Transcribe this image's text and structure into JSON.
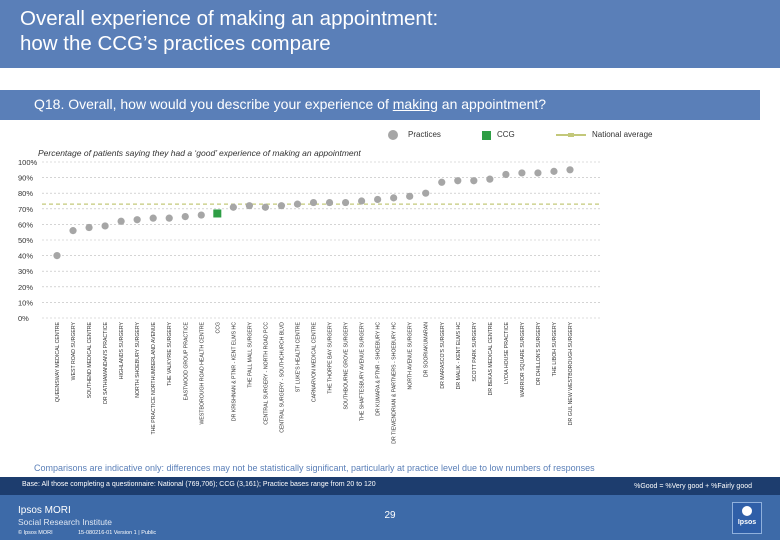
{
  "title": {
    "line1": "Overall experience of making an appointment:",
    "line2": "how the CCG’s practices compare"
  },
  "question": {
    "prefix": "Q18. Overall, how would you describe your experience of ",
    "underlined": "making",
    "suffix": " an appointment?"
  },
  "legend": {
    "practices_label": "Practices",
    "ccg_label": "CCG",
    "national_label": "National average"
  },
  "colors": {
    "header": "#5a7fb8",
    "practice_marker": "#a6a6a6",
    "ccg_marker": "#2e9e45",
    "national_line": "#c3c87a",
    "footer_base": "#1d3d6e",
    "footer": "#3d6aa8"
  },
  "chart_data": {
    "type": "scatter",
    "title": "Percentage of patients saying they had  a ‘good’ experience of making an appointment",
    "ylim": [
      0,
      100
    ],
    "yticks": [
      "0%",
      "10%",
      "20%",
      "30%",
      "40%",
      "50%",
      "60%",
      "70%",
      "80%",
      "90%",
      "100%"
    ],
    "national_average": 73,
    "grid": true,
    "categories": [
      "QUEENSWAY MEDICAL CENTRE",
      "WEST ROAD SURGERY",
      "SOUTHEND MEDICAL CENTRE",
      "DR SATHIAMANDAN'S PRACTICE",
      "HIGHLANDS SURGERY",
      "NORTH SHOEBURY SURGERY",
      "THE PRACTICE NORTHUMBERLAND AVENUE",
      "THE VALKYRIE SURGERY",
      "EASTWOOD GROUP PRACTICE",
      "WESTBOROUGH ROAD HEALTH CENTRE",
      "CCG",
      "DR KRISHNAN & PTNR - KENT ELMS HC",
      "THE PALL MALL SURGERY",
      "CENTRAL SURGERY - NORTH ROAD PCC",
      "CENTRAL SURGERY - SOUTHCHURCH BLVD",
      "ST LUKE'S HEALTH CENTRE",
      "CARNARVON MEDICAL CENTRE",
      "THE THORPE BAY SURGERY",
      "SOUTHBOURNE GROVE SURGERY",
      "THE SHAFTESBURY AVENUE SURGERY",
      "DR KUMARA & PTNR - SHOEBURY HC",
      "DR TIEWENDRIAN & PARTNERS - SHOEBURY HC",
      "NORTH AVENUE SURGERY",
      "DR SOORIAKUMARAN",
      "DR MARASCO'S SURGERY",
      "DR MALIK - KENT ELMS HC",
      "SCOTT PARK SURGERY",
      "DR BEKAS MEDICAL CENTRE",
      "LYDIA HOUSE PRACTICE",
      "WARRIOR SQUARE SURGERY",
      "DR DHILLON'S SURGERY",
      "THE LIBOH SURGERY",
      "DR GUL NEW WESTBOROUGH SURGERY"
    ],
    "values": [
      40,
      56,
      58,
      59,
      62,
      63,
      64,
      64,
      65,
      66,
      67,
      71,
      72,
      71,
      72,
      73,
      74,
      74,
      74,
      75,
      76,
      77,
      78,
      80,
      87,
      88,
      88,
      89,
      92,
      93,
      93,
      94,
      95
    ],
    "ccg_index": 10
  },
  "footnote": "Comparisons are indicative only: differences may not be statistically significant, particularly at practice level due to low numbers of responses",
  "footer": {
    "base": "Base: All those completing a questionnaire: National (769,706); CCG (3,161); Practice bases range from 20 to 120",
    "good_definition": "%Good = %Very good + %Fairly good",
    "logo_title": "Ipsos MORI",
    "logo_subtitle": "Social Research Institute",
    "copyright": "© Ipsos MORI",
    "version": "15-080216-01 Version 1 | Public",
    "page_number": "29",
    "brand_badge": "Ipsos"
  }
}
